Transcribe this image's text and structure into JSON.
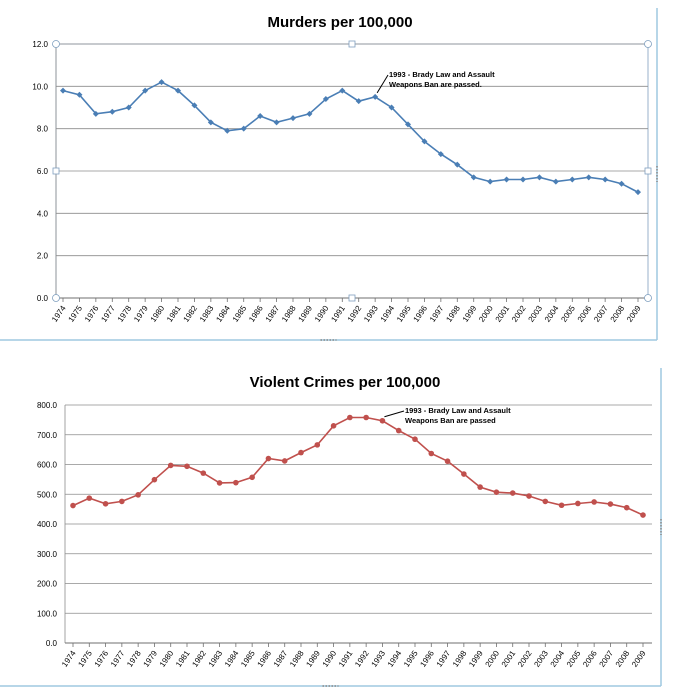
{
  "chart_data": [
    {
      "type": "line",
      "title": "Murders per 100,000",
      "xlabel": "",
      "ylabel": "",
      "x": [
        "1974",
        "1975",
        "1976",
        "1977",
        "1978",
        "1979",
        "1980",
        "1981",
        "1982",
        "1983",
        "1984",
        "1985",
        "1986",
        "1987",
        "1988",
        "1989",
        "1990",
        "1991",
        "1992",
        "1993",
        "1994",
        "1995",
        "1996",
        "1997",
        "1998",
        "1999",
        "2000",
        "2001",
        "2002",
        "2003",
        "2004",
        "2005",
        "2006",
        "2007",
        "2008",
        "2009"
      ],
      "ylim": [
        0,
        12
      ],
      "y_ticks": [
        "0.0",
        "2.0",
        "4.0",
        "6.0",
        "8.0",
        "10.0",
        "12.0"
      ],
      "grid": true,
      "legend": "none",
      "color": "#4a7eb5",
      "series": [
        {
          "values": [
            9.8,
            9.6,
            8.7,
            8.8,
            9.0,
            9.8,
            10.2,
            9.8,
            9.1,
            8.3,
            7.9,
            8.0,
            8.6,
            8.3,
            8.5,
            8.7,
            9.4,
            9.8,
            9.3,
            9.5,
            9.0,
            8.2,
            7.4,
            6.8,
            6.3,
            5.7,
            5.5,
            5.6,
            5.6,
            5.7,
            5.5,
            5.6,
            5.7,
            5.6,
            5.4,
            5.0
          ]
        }
      ],
      "annotation": {
        "lines": [
          "1993 - Brady Law and Assault",
          "Weapons Ban are passed."
        ],
        "points_to": "1993"
      }
    },
    {
      "type": "line",
      "title": "Violent Crimes per 100,000",
      "xlabel": "",
      "ylabel": "",
      "x": [
        "1974",
        "1975",
        "1976",
        "1977",
        "1978",
        "1979",
        "1980",
        "1981",
        "1982",
        "1983",
        "1984",
        "1985",
        "1986",
        "1987",
        "1988",
        "1989",
        "1990",
        "1991",
        "1992",
        "1993",
        "1994",
        "1995",
        "1996",
        "1997",
        "1998",
        "1999",
        "2000",
        "2001",
        "2002",
        "2003",
        "2004",
        "2005",
        "2006",
        "2007",
        "2008",
        "2009"
      ],
      "ylim": [
        0,
        800
      ],
      "y_ticks": [
        "0.0",
        "100.0",
        "200.0",
        "300.0",
        "400.0",
        "500.0",
        "600.0",
        "700.0",
        "800.0"
      ],
      "grid": true,
      "legend": "none",
      "color": "#c0504d",
      "series": [
        {
          "values": [
            462,
            487,
            468,
            476,
            498,
            549,
            597,
            594,
            571,
            538,
            539,
            557,
            620,
            612,
            640,
            666,
            730,
            758,
            758,
            747,
            714,
            685,
            637,
            611,
            568,
            524,
            507,
            504,
            494,
            476,
            463,
            469,
            474,
            467,
            455,
            430
          ]
        }
      ],
      "annotation": {
        "lines": [
          "1993 - Brady Law and Assault",
          "Weapons Ban are passed"
        ],
        "points_to": "1993"
      }
    }
  ]
}
